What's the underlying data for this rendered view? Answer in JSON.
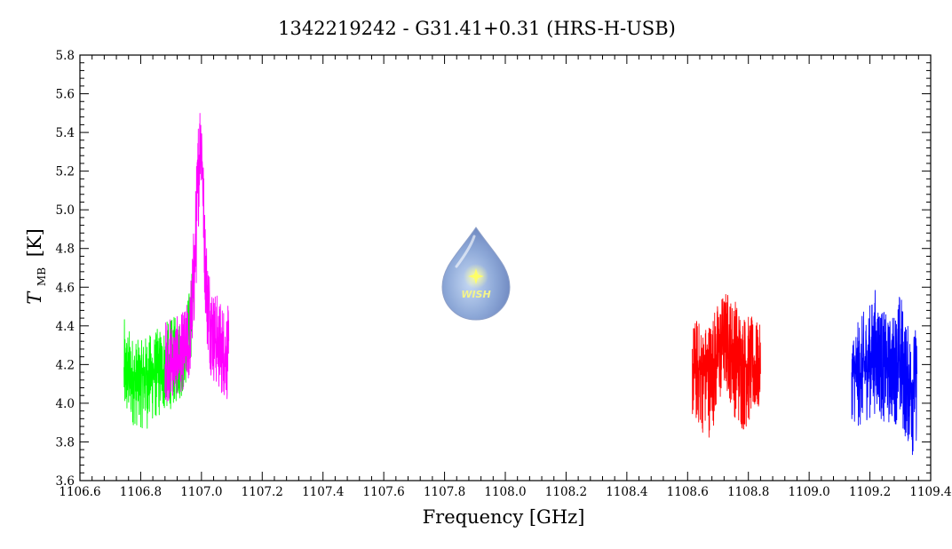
{
  "chart_data": {
    "type": "line",
    "title": "1342219242 - G31.41+0.31 (HRS-H-USB)",
    "xlabel": "Frequency [GHz]",
    "ylabel_main": "T",
    "ylabel_sub": "MB",
    "ylabel_unit": "[K]",
    "xlim": [
      1106.6,
      1109.4
    ],
    "ylim": [
      3.6,
      5.8
    ],
    "xticks": [
      1106.6,
      1106.8,
      1107.0,
      1107.2,
      1107.4,
      1107.6,
      1107.8,
      1108.0,
      1108.2,
      1108.4,
      1108.6,
      1108.8,
      1109.0,
      1109.2,
      1109.4
    ],
    "yticks": [
      3.6,
      3.8,
      4.0,
      4.2,
      4.4,
      4.6,
      4.8,
      5.0,
      5.2,
      5.4,
      5.6,
      5.8
    ],
    "grid": false,
    "logo_text": "WISH",
    "series": [
      {
        "color": "#00ff00",
        "x": [
          1106.745,
          1106.76,
          1106.78,
          1106.8,
          1106.82,
          1106.84,
          1106.86,
          1106.88,
          1106.9,
          1106.92,
          1106.94,
          1106.95,
          1106.96,
          1106.97,
          1106.975
        ],
        "mid": [
          4.14,
          4.13,
          4.12,
          4.14,
          4.15,
          4.16,
          4.16,
          4.18,
          4.19,
          4.22,
          4.25,
          4.29,
          4.36,
          4.48,
          4.62
        ],
        "hi": [
          4.44,
          4.4,
          4.34,
          4.32,
          4.36,
          4.36,
          4.4,
          4.42,
          4.44,
          4.46,
          4.44,
          4.5,
          4.6,
          4.72,
          4.8
        ],
        "lo": [
          3.89,
          3.9,
          3.88,
          3.87,
          3.86,
          3.9,
          3.92,
          3.95,
          3.97,
          4.0,
          4.04,
          4.1,
          4.18,
          4.28,
          4.42
        ]
      },
      {
        "color": "#ff00ff",
        "x": [
          1106.88,
          1106.9,
          1106.93,
          1106.96,
          1106.975,
          1106.985,
          1106.99,
          1106.995,
          1107.0,
          1107.005,
          1107.01,
          1107.02,
          1107.03,
          1107.04,
          1107.06,
          1107.08,
          1107.09
        ],
        "mid": [
          4.18,
          4.2,
          4.23,
          4.28,
          4.6,
          4.95,
          5.2,
          5.35,
          5.4,
          5.1,
          4.8,
          4.55,
          4.45,
          4.35,
          4.28,
          4.25,
          4.24
        ],
        "hi": [
          4.45,
          4.45,
          4.45,
          4.55,
          4.95,
          5.3,
          5.55,
          5.62,
          5.6,
          5.4,
          5.05,
          4.8,
          4.7,
          4.6,
          4.55,
          4.52,
          4.5
        ],
        "lo": [
          4.0,
          4.02,
          4.05,
          4.1,
          4.35,
          4.65,
          4.9,
          5.1,
          5.15,
          4.82,
          4.55,
          4.25,
          4.15,
          4.1,
          4.05,
          4.02,
          4.0
        ]
      },
      {
        "color": "#ff0000",
        "x": [
          1108.615,
          1108.63,
          1108.65,
          1108.67,
          1108.69,
          1108.71,
          1108.72,
          1108.73,
          1108.74,
          1108.76,
          1108.78,
          1108.8,
          1108.82,
          1108.84
        ],
        "mid": [
          4.18,
          4.19,
          4.16,
          4.18,
          4.24,
          4.3,
          4.34,
          4.33,
          4.3,
          4.24,
          4.22,
          4.2,
          4.19,
          4.18
        ],
        "hi": [
          4.42,
          4.45,
          4.4,
          4.44,
          4.5,
          4.56,
          4.58,
          4.6,
          4.56,
          4.55,
          4.48,
          4.46,
          4.44,
          4.4
        ],
        "lo": [
          3.9,
          3.88,
          3.84,
          3.82,
          3.9,
          4.0,
          4.05,
          4.04,
          4.0,
          3.9,
          3.84,
          3.88,
          3.92,
          3.95
        ]
      },
      {
        "color": "#0000ff",
        "x": [
          1109.14,
          1109.16,
          1109.18,
          1109.2,
          1109.22,
          1109.24,
          1109.26,
          1109.28,
          1109.3,
          1109.32,
          1109.34,
          1109.355
        ],
        "mid": [
          4.16,
          4.15,
          4.18,
          4.22,
          4.26,
          4.22,
          4.18,
          4.2,
          4.22,
          4.14,
          4.1,
          4.16
        ],
        "hi": [
          4.4,
          4.42,
          4.48,
          4.52,
          4.62,
          4.5,
          4.44,
          4.48,
          4.6,
          4.42,
          4.38,
          4.4
        ],
        "lo": [
          3.92,
          3.86,
          3.9,
          3.92,
          3.95,
          3.9,
          3.88,
          3.9,
          3.86,
          3.8,
          3.72,
          3.8
        ]
      }
    ]
  }
}
